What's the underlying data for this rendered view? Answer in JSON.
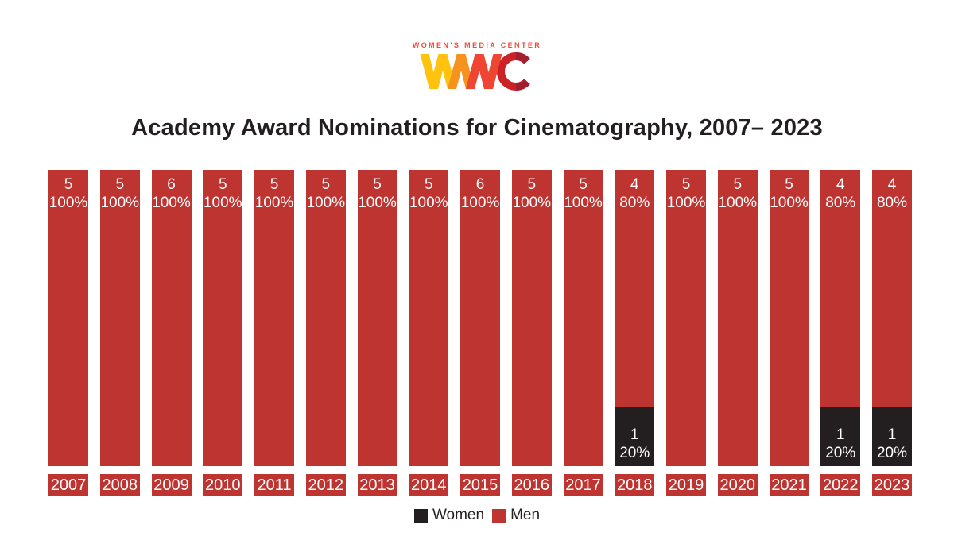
{
  "logo": {
    "tagline": "WOMEN'S MEDIA CENTER",
    "mark_text": "WMC",
    "colors": {
      "tagline": "#EF4B35",
      "w": "#FFC20E",
      "m1": "#F6921E",
      "m2": "#EF4634",
      "c1": "#CB2128",
      "c2": "#A31E2F"
    }
  },
  "title": "Academy Award Nominations for Cinematography, 2007– 2023",
  "chart_data": {
    "type": "bar",
    "stacked": true,
    "percent_stacked": true,
    "title": "Academy Award Nominations for Cinematography, 2007– 2023",
    "xlabel": "",
    "ylabel": "",
    "ylim": [
      0,
      100
    ],
    "grid": false,
    "legend_position": "bottom-center",
    "categories": [
      "2007",
      "2008",
      "2009",
      "2010",
      "2011",
      "2012",
      "2013",
      "2014",
      "2015",
      "2016",
      "2017",
      "2018",
      "2019",
      "2020",
      "2021",
      "2022",
      "2023"
    ],
    "series": [
      {
        "name": "Women",
        "color": "#231F20",
        "values": [
          0,
          0,
          0,
          0,
          0,
          0,
          0,
          0,
          0,
          0,
          0,
          1,
          0,
          0,
          0,
          1,
          1
        ],
        "percents": [
          0,
          0,
          0,
          0,
          0,
          0,
          0,
          0,
          0,
          0,
          0,
          20,
          0,
          0,
          0,
          20,
          20
        ]
      },
      {
        "name": "Men",
        "color": "#BE3430",
        "values": [
          5,
          5,
          6,
          5,
          5,
          5,
          5,
          5,
          6,
          5,
          5,
          4,
          5,
          5,
          5,
          4,
          4
        ],
        "percents": [
          100,
          100,
          100,
          100,
          100,
          100,
          100,
          100,
          100,
          100,
          100,
          80,
          100,
          100,
          100,
          80,
          80
        ]
      }
    ],
    "bars": [
      {
        "year": "2007",
        "men_count": "5",
        "men_pct": "100%"
      },
      {
        "year": "2008",
        "men_count": "5",
        "men_pct": "100%"
      },
      {
        "year": "2009",
        "men_count": "6",
        "men_pct": "100%"
      },
      {
        "year": "2010",
        "men_count": "5",
        "men_pct": "100%"
      },
      {
        "year": "2011",
        "men_count": "5",
        "men_pct": "100%"
      },
      {
        "year": "2012",
        "men_count": "5",
        "men_pct": "100%"
      },
      {
        "year": "2013",
        "men_count": "5",
        "men_pct": "100%"
      },
      {
        "year": "2014",
        "men_count": "5",
        "men_pct": "100%"
      },
      {
        "year": "2015",
        "men_count": "6",
        "men_pct": "100%"
      },
      {
        "year": "2016",
        "men_count": "5",
        "men_pct": "100%"
      },
      {
        "year": "2017",
        "men_count": "5",
        "men_pct": "100%"
      },
      {
        "year": "2018",
        "men_count": "4",
        "men_pct": "80%",
        "women_count": "1",
        "women_pct": "20%"
      },
      {
        "year": "2019",
        "men_count": "5",
        "men_pct": "100%"
      },
      {
        "year": "2020",
        "men_count": "5",
        "men_pct": "100%"
      },
      {
        "year": "2021",
        "men_count": "5",
        "men_pct": "100%"
      },
      {
        "year": "2022",
        "men_count": "4",
        "men_pct": "80%",
        "women_count": "1",
        "women_pct": "20%"
      },
      {
        "year": "2023",
        "men_count": "4",
        "men_pct": "80%",
        "women_count": "1",
        "women_pct": "20%"
      }
    ],
    "legend": [
      {
        "label": "Women",
        "color": "#231F20"
      },
      {
        "label": "Men",
        "color": "#BE3430"
      }
    ],
    "colors": {
      "men": "#BE3430",
      "women": "#231F20",
      "bar_label_text": "#FFFFFF",
      "year_label_text": "#FFFFFF",
      "title_text": "#231F20",
      "background": "#FFFFFF"
    }
  }
}
